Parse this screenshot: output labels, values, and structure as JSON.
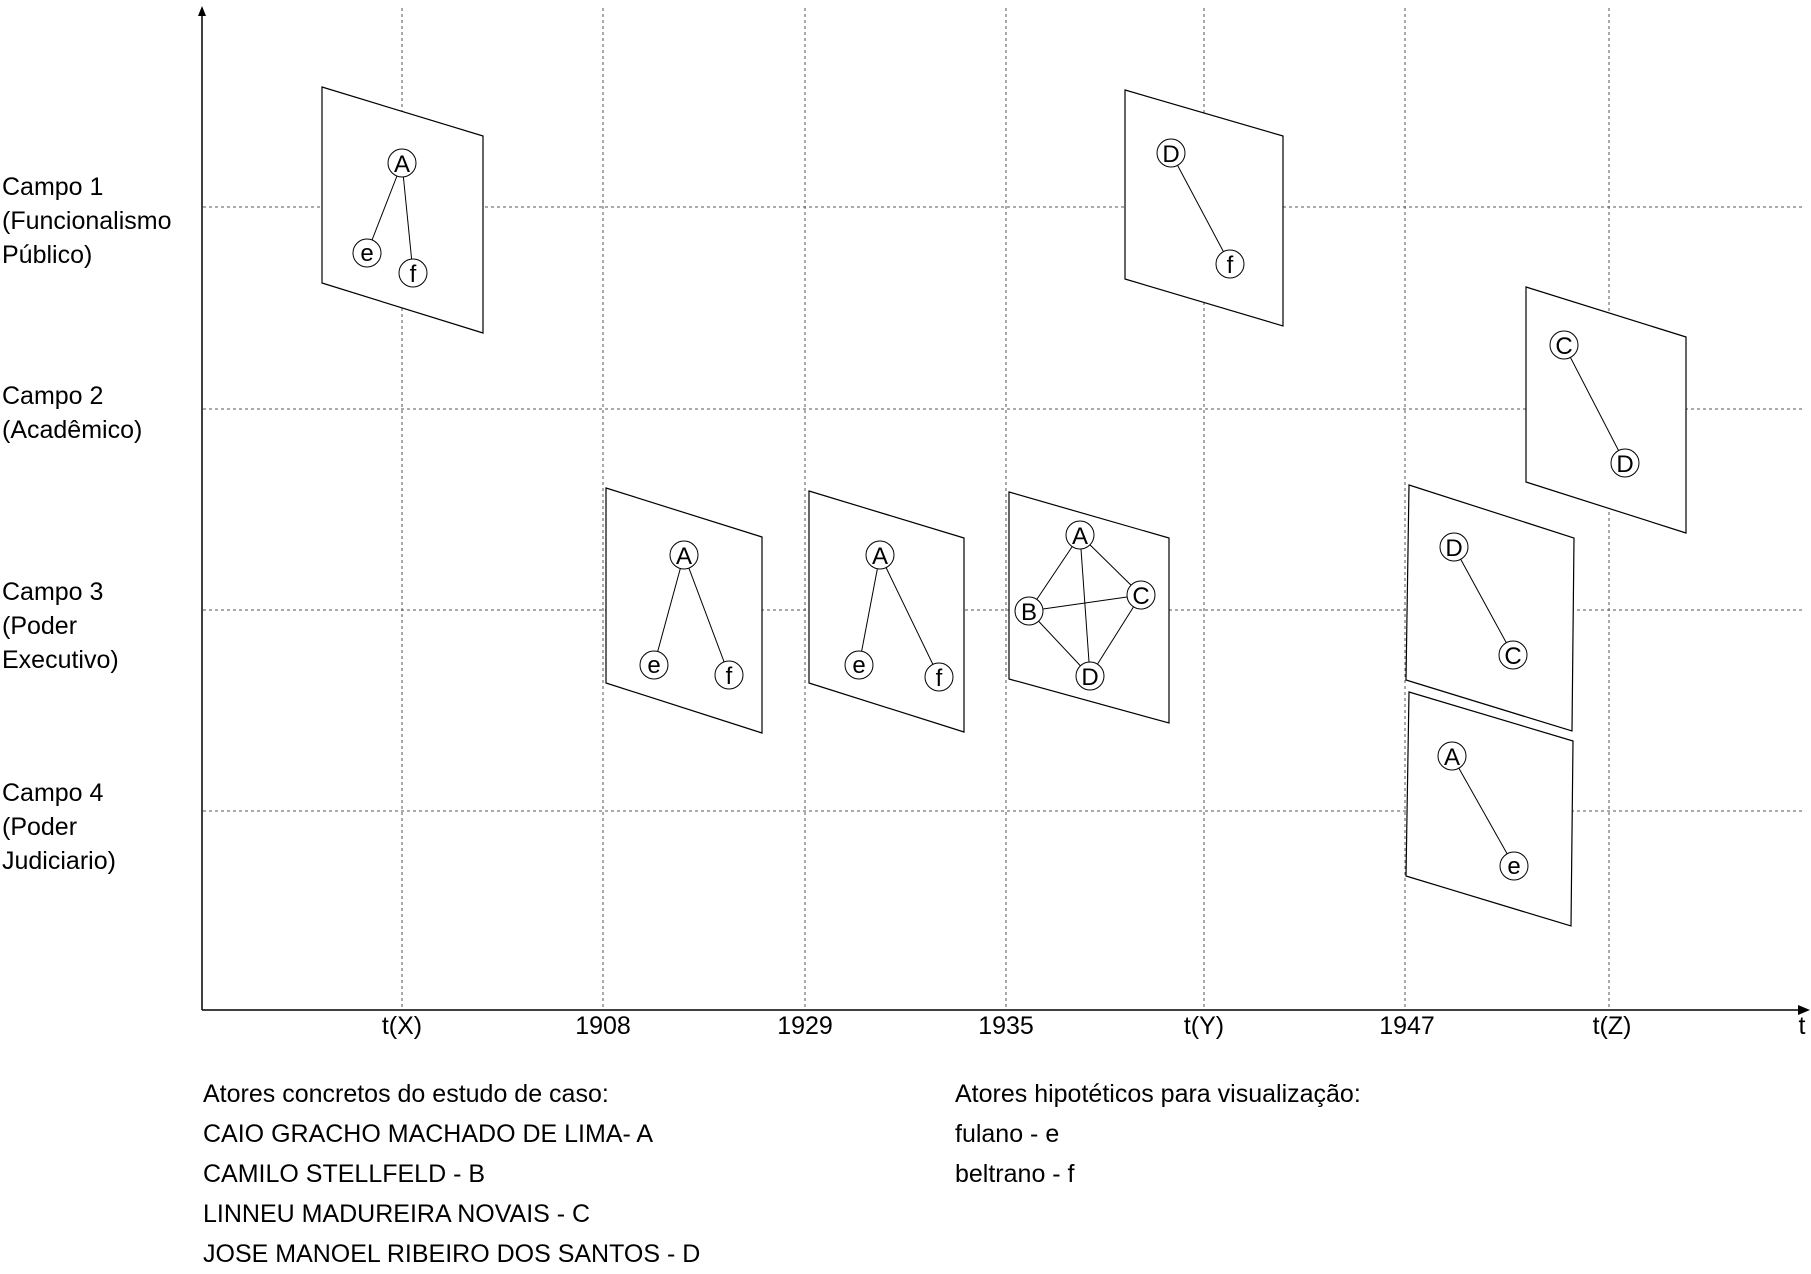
{
  "campos": [
    {
      "lines": [
        "Campo 1",
        "(Funcionalismo",
        "Público)"
      ]
    },
    {
      "lines": [
        "Campo 2",
        "(Acadêmico)"
      ]
    },
    {
      "lines": [
        "Campo 3",
        "(Poder",
        "Executivo)"
      ]
    },
    {
      "lines": [
        "Campo 4",
        "(Poder",
        "Judiciario)"
      ]
    }
  ],
  "time_axis": {
    "ticks": [
      "t(X)",
      "1908",
      "1929",
      "1935",
      "t(Y)",
      "1947",
      "t(Z)"
    ],
    "end_label": "t"
  },
  "legend_concrete": {
    "title": "Atores concretos do estudo de caso:",
    "items": [
      "CAIO GRACHO MACHADO DE LIMA- A",
      "CAMILO STELLFELD - B",
      "LINNEU MADUREIRA NOVAIS - C",
      "JOSE MANOEL RIBEIRO DOS SANTOS - D"
    ]
  },
  "legend_hypothetical": {
    "title": "Atores hipotéticos para visualização:",
    "items": [
      "fulano - e",
      "beltrano - f"
    ]
  },
  "networks": [
    {
      "time": "t(X)",
      "campo": "Campo 1",
      "nodes": [
        "A",
        "e",
        "f"
      ],
      "edges": [
        [
          "A",
          "e"
        ],
        [
          "A",
          "f"
        ]
      ]
    },
    {
      "time": "t(Y)",
      "campo": "Campo 1",
      "nodes": [
        "D",
        "f"
      ],
      "edges": [
        [
          "D",
          "f"
        ]
      ]
    },
    {
      "time": "t(Z)",
      "campo": "Campo 2",
      "nodes": [
        "C",
        "D"
      ],
      "edges": [
        [
          "C",
          "D"
        ]
      ]
    },
    {
      "time": "1908",
      "campo": "Campo 3",
      "nodes": [
        "A",
        "e",
        "f"
      ],
      "edges": [
        [
          "A",
          "e"
        ],
        [
          "A",
          "f"
        ]
      ]
    },
    {
      "time": "1929",
      "campo": "Campo 3",
      "nodes": [
        "A",
        "e",
        "f"
      ],
      "edges": [
        [
          "A",
          "e"
        ],
        [
          "A",
          "f"
        ]
      ]
    },
    {
      "time": "1935",
      "campo": "Campo 3",
      "nodes": [
        "A",
        "B",
        "C",
        "D"
      ],
      "edges": [
        [
          "A",
          "B"
        ],
        [
          "A",
          "C"
        ],
        [
          "A",
          "D"
        ],
        [
          "B",
          "C"
        ],
        [
          "B",
          "D"
        ],
        [
          "C",
          "D"
        ]
      ]
    },
    {
      "time": "1947",
      "campo": "Campo 3",
      "nodes": [
        "D",
        "C"
      ],
      "edges": [
        [
          "D",
          "C"
        ]
      ]
    },
    {
      "time": "1947",
      "campo": "Campo 4",
      "nodes": [
        "A",
        "e"
      ],
      "edges": [
        [
          "A",
          "e"
        ]
      ]
    }
  ]
}
